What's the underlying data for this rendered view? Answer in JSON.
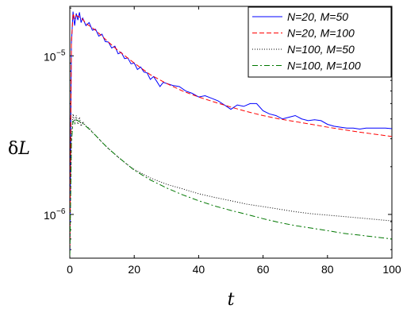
{
  "chart_data": {
    "type": "line",
    "xlabel": "t",
    "ylabel_base": "δ",
    "ylabel_var": "L",
    "xlim": [
      0,
      100
    ],
    "ylim": [
      5.3e-07,
      2.05e-05
    ],
    "yscale": "log",
    "xticks": [
      0,
      20,
      40,
      60,
      80,
      100
    ],
    "yticks": [
      {
        "value": 1e-06,
        "base": "10",
        "exp": "−6"
      },
      {
        "value": 1e-05,
        "base": "10",
        "exp": "−5"
      }
    ],
    "legend_position": "top-right",
    "series": [
      {
        "name": "N=20, M=50",
        "color": "#0000ff",
        "dash": "solid",
        "x": [
          0,
          0.5,
          1,
          1.5,
          2,
          2.5,
          3,
          3.5,
          4,
          5,
          6,
          7,
          8,
          9,
          10,
          11,
          12,
          13,
          14,
          15,
          16,
          17,
          18,
          19,
          20,
          21,
          22,
          23,
          24,
          25,
          26,
          27,
          28,
          29,
          30,
          32,
          34,
          36,
          38,
          40,
          42,
          44,
          46,
          48,
          50,
          52,
          54,
          56,
          58,
          60,
          62,
          64,
          66,
          68,
          70,
          72,
          74,
          76,
          78,
          80,
          82,
          84,
          86,
          88,
          90,
          92,
          94,
          96,
          98,
          100
        ],
        "y": [
          5.5e-07,
          1.2e-05,
          1.9e-05,
          1.55e-05,
          1.85e-05,
          1.68e-05,
          1.88e-05,
          1.62e-05,
          1.73e-05,
          1.55e-05,
          1.62e-05,
          1.45e-05,
          1.47e-05,
          1.33e-05,
          1.37e-05,
          1.23e-05,
          1.22e-05,
          1.12e-05,
          1.15e-05,
          1.03e-05,
          1.05e-05,
          9.6e-06,
          9.7e-06,
          8.9e-06,
          9e-06,
          8.2e-06,
          8.5e-06,
          7.9e-06,
          7.8e-06,
          7.1e-06,
          7.4e-06,
          6.9e-06,
          6.4e-06,
          6.8e-06,
          6.7e-06,
          6.5e-06,
          6.4e-06,
          6e-06,
          5.8e-06,
          5.5e-06,
          5.6e-06,
          5.4e-06,
          5.2e-06,
          4.9e-06,
          4.6e-06,
          4.9e-06,
          4.8e-06,
          5e-06,
          5e-06,
          4.5e-06,
          4.3e-06,
          4.2e-06,
          4e-06,
          4.1e-06,
          4.2e-06,
          4e-06,
          3.9e-06,
          3.95e-06,
          3.9e-06,
          3.7e-06,
          3.6e-06,
          3.55e-06,
          3.5e-06,
          3.5e-06,
          3.45e-06,
          3.5e-06,
          3.5e-06,
          3.5e-06,
          3.5e-06,
          3.47e-06
        ]
      },
      {
        "name": "N=20, M=100",
        "color": "#ff0000",
        "dash": "6,3",
        "x": [
          0,
          0.5,
          1,
          1.5,
          2,
          3,
          4,
          5,
          6,
          8,
          10,
          12,
          15,
          20,
          25,
          30,
          35,
          40,
          45,
          50,
          55,
          60,
          65,
          70,
          75,
          80,
          85,
          90,
          95,
          100
        ],
        "y": [
          5.5e-07,
          1.2e-05,
          1.85e-05,
          1.72e-05,
          1.8e-05,
          1.75e-05,
          1.7e-05,
          1.6e-05,
          1.55e-05,
          1.45e-05,
          1.33e-05,
          1.22e-05,
          1.08e-05,
          9e-06,
          7.6e-06,
          6.7e-06,
          6e-06,
          5.5e-06,
          5.1e-06,
          4.75e-06,
          4.45e-06,
          4.2e-06,
          4e-06,
          3.85e-06,
          3.7e-06,
          3.55e-06,
          3.42e-06,
          3.3e-06,
          3.2e-06,
          3.1e-06
        ]
      },
      {
        "name": "N=100, M=50",
        "color": "#000000",
        "dash": "1,2",
        "x": [
          0,
          0.5,
          1,
          1.5,
          2,
          2.5,
          3,
          3.5,
          4,
          5,
          6,
          7,
          8,
          10,
          12,
          15,
          18,
          20,
          25,
          30,
          35,
          40,
          45,
          50,
          55,
          60,
          65,
          70,
          75,
          80,
          85,
          90,
          95,
          100
        ],
        "y": [
          5.5e-07,
          3e-06,
          4.3e-06,
          3.8e-06,
          4.2e-06,
          3.7e-06,
          4.1e-06,
          3.6e-06,
          3.85e-06,
          3.6e-06,
          3.5e-06,
          3.3e-06,
          3.15e-06,
          2.85e-06,
          2.6e-06,
          2.3e-06,
          2.05e-06,
          1.92e-06,
          1.7e-06,
          1.55e-06,
          1.45e-06,
          1.35e-06,
          1.28e-06,
          1.22e-06,
          1.16e-06,
          1.12e-06,
          1.08e-06,
          1.04e-06,
          1.01e-06,
          9.9e-07,
          9.7e-07,
          9.5e-07,
          9.3e-07,
          9.1e-07
        ]
      },
      {
        "name": "N=100, M=100",
        "color": "#007700",
        "dash": "7,3,2,3",
        "x": [
          0,
          0.5,
          1,
          1.5,
          2,
          3,
          4,
          5,
          6,
          8,
          10,
          12,
          15,
          20,
          25,
          30,
          35,
          40,
          45,
          50,
          55,
          60,
          65,
          70,
          75,
          80,
          85,
          90,
          95,
          100
        ],
        "y": [
          5.5e-07,
          2.8e-06,
          3.9e-06,
          3.7e-06,
          3.95e-06,
          3.85e-06,
          3.75e-06,
          3.6e-06,
          3.45e-06,
          3.15e-06,
          2.85e-06,
          2.6e-06,
          2.3e-06,
          1.9e-06,
          1.65e-06,
          1.47e-06,
          1.33e-06,
          1.22e-06,
          1.13e-06,
          1.06e-06,
          1e-06,
          9.4e-07,
          8.9e-07,
          8.5e-07,
          8.2e-07,
          7.9e-07,
          7.6e-07,
          7.4e-07,
          7.2e-07,
          7e-07
        ]
      }
    ]
  }
}
